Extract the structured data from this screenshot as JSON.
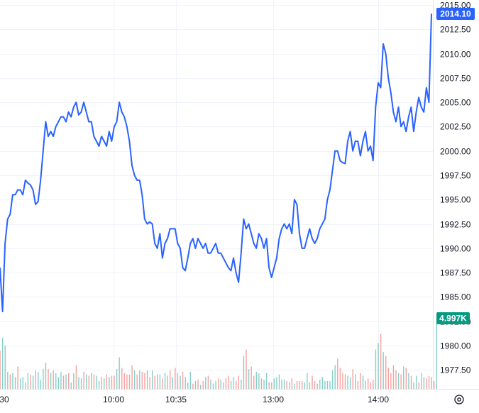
{
  "chart_data": {
    "type": "line",
    "title": "",
    "xlabel": "",
    "ylabel": "",
    "x_ticks": [
      "30",
      "10:00",
      "10:35",
      "13:00",
      "14:00"
    ],
    "y_ticks": [
      "1977.50",
      "1980.00",
      "1982.50",
      "1985.00",
      "1987.50",
      "1990.00",
      "1992.50",
      "1995.00",
      "1997.50",
      "2000.00",
      "2002.50",
      "2005.00",
      "2007.50",
      "2010.00",
      "2012.50",
      "2015.00"
    ],
    "ylim": [
      1976.5,
      2015.0
    ],
    "grid": true,
    "colors": {
      "line": "#2962ff",
      "up_volume": "#26a69a",
      "down_volume": "#ef5350",
      "price_badge": "#2962ff",
      "volume_badge": "#089981"
    },
    "last_price_label": "2014.10",
    "last_volume_label": "4.997K",
    "price": [
      1988.0,
      1983.5,
      1990.5,
      1993.0,
      1993.5,
      1995.5,
      1995.5,
      1996.0,
      1996.0,
      1995.5,
      1997.0,
      1996.7,
      1996.5,
      1996.0,
      1994.5,
      1994.8,
      1997.0,
      2000.0,
      2003.0,
      2001.5,
      2002.0,
      2001.5,
      2002.5,
      2003.0,
      2003.5,
      2003.5,
      2003.0,
      2004.0,
      2003.5,
      2004.5,
      2005.0,
      2003.7,
      2004.0,
      2005.0,
      2004.0,
      2003.0,
      2003.0,
      2001.5,
      2001.0,
      2000.5,
      2001.5,
      2001.0,
      2000.5,
      2002.0,
      2001.0,
      2002.5,
      2003.0,
      2005.0,
      2004.0,
      2003.5,
      2002.5,
      2001.0,
      1998.5,
      1997.5,
      1997.0,
      1997.0,
      1995.5,
      1993.0,
      1992.5,
      1992.7,
      1992.5,
      1990.5,
      1990.0,
      1991.5,
      1989.0,
      1990.5,
      1991.0,
      1992.0,
      1992.0,
      1992.0,
      1990.5,
      1990.0,
      1988.0,
      1987.7,
      1989.0,
      1990.5,
      1991.0,
      1990.0,
      1991.0,
      1990.5,
      1990.0,
      1990.5,
      1989.5,
      1989.5,
      1990.0,
      1990.5,
      1989.5,
      1989.5,
      1989.0,
      1988.5,
      1988.0,
      1987.7,
      1989.0,
      1987.5,
      1986.5,
      1989.5,
      1993.0,
      1992.0,
      1992.5,
      1991.5,
      1990.5,
      1990.0,
      1991.5,
      1991.0,
      1990.0,
      1991.0,
      1988.0,
      1987.0,
      1988.0,
      1989.0,
      1991.0,
      1992.0,
      1992.5,
      1992.0,
      1992.5,
      1991.5,
      1995.0,
      1994.5,
      1991.5,
      1990.0,
      1990.0,
      1991.0,
      1992.0,
      1991.0,
      1990.5,
      1991.0,
      1992.0,
      1992.5,
      1993.0,
      1995.0,
      1996.0,
      1998.0,
      2000.0,
      2000.0,
      1999.0,
      1998.8,
      1998.7,
      2001.0,
      2002.0,
      2000.0,
      2001.0,
      2001.0,
      1999.5,
      2001.0,
      2002.0,
      2000.0,
      2000.5,
      1999.0,
      2004.5,
      2007.0,
      2006.5,
      2011.0,
      2010.0,
      2007.5,
      2006.0,
      2004.0,
      2003.0,
      2004.5,
      2002.5,
      2003.0,
      2002.0,
      2003.5,
      2004.5,
      2002.0,
      2004.0,
      2005.5,
      2004.5,
      2004.0,
      2006.5,
      2005.0,
      2014.1
    ],
    "volume": [
      2.9,
      3.9,
      3.3,
      1.3,
      1.1,
      1.2,
      0.9,
      1.7,
      0.8,
      0.9,
      0.5,
      1.2,
      1.1,
      1.0,
      1.4,
      1.3,
      0.7,
      1.5,
      2.0,
      1.5,
      1.2,
      1.4,
      1.2,
      0.9,
      1.3,
      1.0,
      1.1,
      1.2,
      0.5,
      1.2,
      1.8,
      0.9,
      0.8,
      1.3,
      1.1,
      1.0,
      1.2,
      1.1,
      1.0,
      0.6,
      0.9,
      0.8,
      1.1,
      0.9,
      1.0,
      1.0,
      1.5,
      2.4,
      1.6,
      1.2,
      1.1,
      1.1,
      1.8,
      1.4,
      1.1,
      1.4,
      1.3,
      1.2,
      1.4,
      0.9,
      1.4,
      1.0,
      1.1,
      1.1,
      0.8,
      1.2,
      1.0,
      1.4,
      0.9,
      1.6,
      1.2,
      1.0,
      1.3,
      0.9,
      0.5,
      1.3,
      0.4,
      0.6,
      0.7,
      0.3,
      0.6,
      0.9,
      1.0,
      0.7,
      0.4,
      0.6,
      0.8,
      0.7,
      0.5,
      0.8,
      1.0,
      0.6,
      0.9,
      0.6,
      1.0,
      0.7,
      2.5,
      3.0,
      1.5,
      1.7,
      1.0,
      1.3,
      1.2,
      0.8,
      0.7,
      1.2,
      0.5,
      0.5,
      0.8,
      0.9,
      1.1,
      0.7,
      0.7,
      0.6,
      0.5,
      0.8,
      0.4,
      0.6,
      0.6,
      0.6,
      0.5,
      1.2,
      0.5,
      1.0,
      0.6,
      0.4,
      0.7,
      0.9,
      0.6,
      0.6,
      0.6,
      1.4,
      1.8,
      2.3,
      1.6,
      1.2,
      1.1,
      1.0,
      0.9,
      1.5,
      1.1,
      0.6,
      1.2,
      1.0,
      0.6,
      0.8,
      0.5,
      0.7,
      3.0,
      3.5,
      4.2,
      2.8,
      2.5,
      1.6,
      1.2,
      1.8,
      1.4,
      1.2,
      1.1,
      1.7,
      1.6,
      1.2,
      1.0,
      0.5,
      1.0,
      0.5,
      1.2,
      0.9,
      0.8,
      1.0,
      0.9,
      0.6,
      4.997
    ],
    "volume_up": [
      false,
      true,
      true,
      true,
      false,
      true,
      true,
      false,
      true,
      true,
      false,
      true,
      false,
      true,
      false,
      true,
      true,
      true,
      true,
      false,
      true,
      false,
      true,
      true,
      true,
      false,
      true,
      false,
      true,
      true,
      false,
      true,
      true,
      false,
      true,
      false,
      true,
      false,
      true,
      true,
      false,
      true,
      false,
      true,
      false,
      false,
      true,
      true,
      false,
      false,
      false,
      false,
      false,
      true,
      false,
      true,
      false,
      false,
      true,
      false,
      true,
      false,
      true,
      true,
      false,
      true,
      true,
      false,
      true,
      false,
      false,
      true,
      false,
      true,
      true,
      true,
      false,
      true,
      false,
      true,
      false,
      true,
      false,
      true,
      true,
      true,
      false,
      true,
      false,
      false,
      false,
      true,
      true,
      false,
      false,
      true,
      true,
      false,
      true,
      false,
      false,
      true,
      true,
      false,
      true,
      true,
      false,
      false,
      true,
      true,
      true,
      true,
      true,
      false,
      true,
      false,
      true,
      false,
      false,
      false,
      true,
      true,
      true,
      false,
      false,
      true,
      true,
      true,
      true,
      true,
      true,
      true,
      true,
      false,
      false,
      false,
      false,
      true,
      true,
      false,
      true,
      false,
      false,
      true,
      true,
      false,
      false,
      false,
      true,
      true,
      false,
      true,
      false,
      false,
      false,
      false,
      false,
      true,
      false,
      true,
      false,
      true,
      false,
      true,
      true,
      false,
      true,
      true,
      false,
      false,
      true,
      false,
      true
    ]
  }
}
